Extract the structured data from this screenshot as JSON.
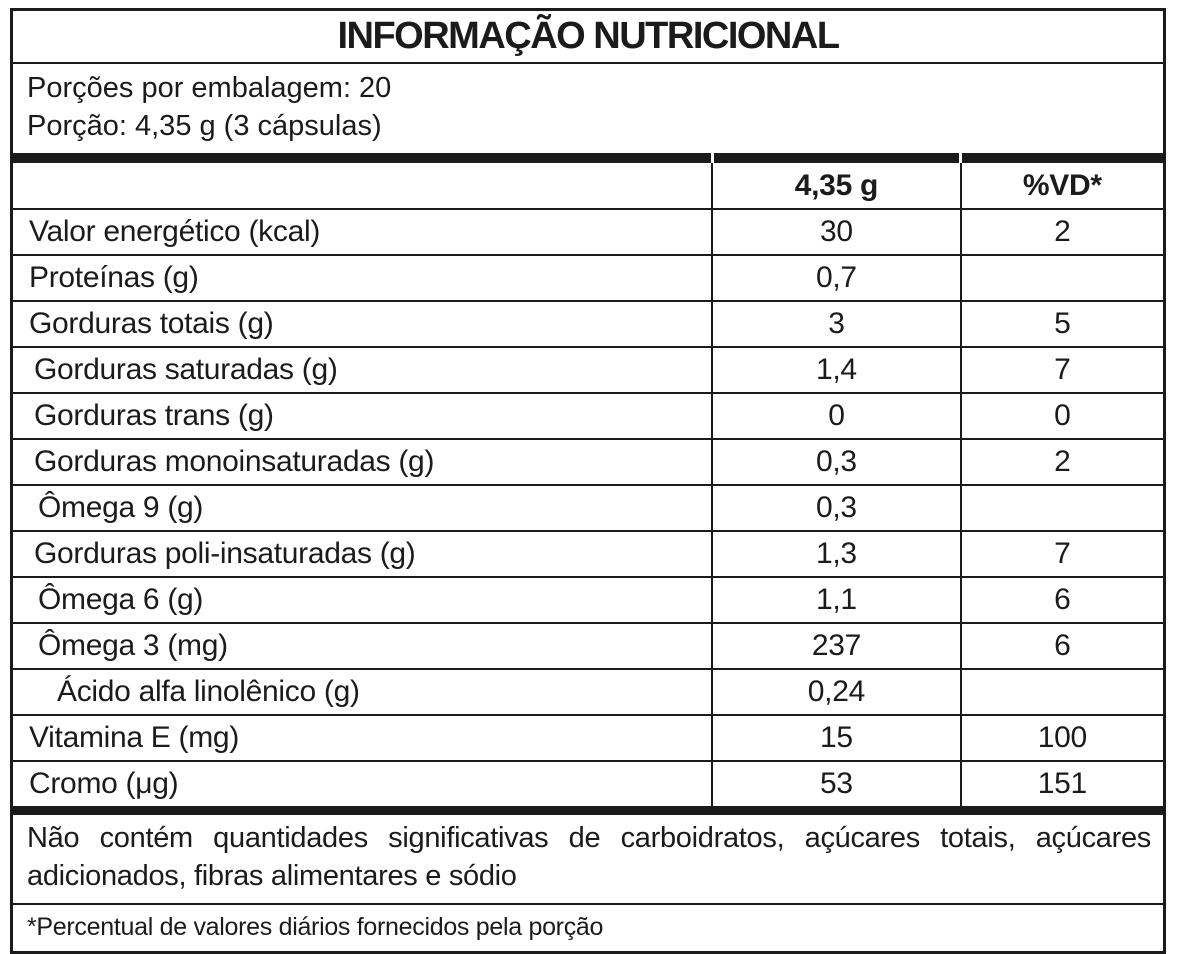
{
  "title": "INFORMAÇÃO NUTRICIONAL",
  "serving_info": {
    "line1": "Porções por embalagem: 20",
    "line2": "Porção: 4,35 g (3 cápsulas)"
  },
  "table": {
    "columns": [
      "",
      "4,35 g",
      "%VD*"
    ],
    "rows": [
      {
        "label": "Valor energético (kcal)",
        "amount": "30",
        "vd": "2",
        "indent": 0
      },
      {
        "label": "Proteínas (g)",
        "amount": "0,7",
        "vd": "",
        "indent": 0
      },
      {
        "label": "Gorduras totais (g)",
        "amount": "3",
        "vd": "5",
        "indent": 0
      },
      {
        "label": "Gorduras saturadas (g)",
        "amount": "1,4",
        "vd": "7",
        "indent": 1
      },
      {
        "label": "Gorduras trans (g)",
        "amount": "0",
        "vd": "0",
        "indent": 1
      },
      {
        "label": "Gorduras monoinsaturadas (g)",
        "amount": "0,3",
        "vd": "2",
        "indent": 1
      },
      {
        "label": "Ômega 9 (g)",
        "amount": "0,3",
        "vd": "",
        "indent": 2
      },
      {
        "label": "Gorduras poli-insaturadas (g)",
        "amount": "1,3",
        "vd": "7",
        "indent": 1
      },
      {
        "label": "Ômega 6 (g)",
        "amount": "1,1",
        "vd": "6",
        "indent": 2
      },
      {
        "label": "Ômega 3 (mg)",
        "amount": "237",
        "vd": "6",
        "indent": 2
      },
      {
        "label": "Ácido alfa linolênico (g)",
        "amount": "0,24",
        "vd": "",
        "indent": 3
      },
      {
        "label": "Vitamina E (mg)",
        "amount": "15",
        "vd": "100",
        "indent": 0
      },
      {
        "label": "Cromo (μg)",
        "amount": "53",
        "vd": "151",
        "indent": 0
      }
    ]
  },
  "footnotes": {
    "no_significant_line1": "Não contém quantidades significativas de carboidratos, açúcares totais, açúcares",
    "no_significant_line2": "adicionados, fibras alimentares e sódio",
    "daily_values": "*Percentual de valores diários fornecidos pela porção"
  },
  "colors": {
    "border": "#1b1b1b",
    "background": "#ffffff",
    "text": "#1b1b1b"
  }
}
